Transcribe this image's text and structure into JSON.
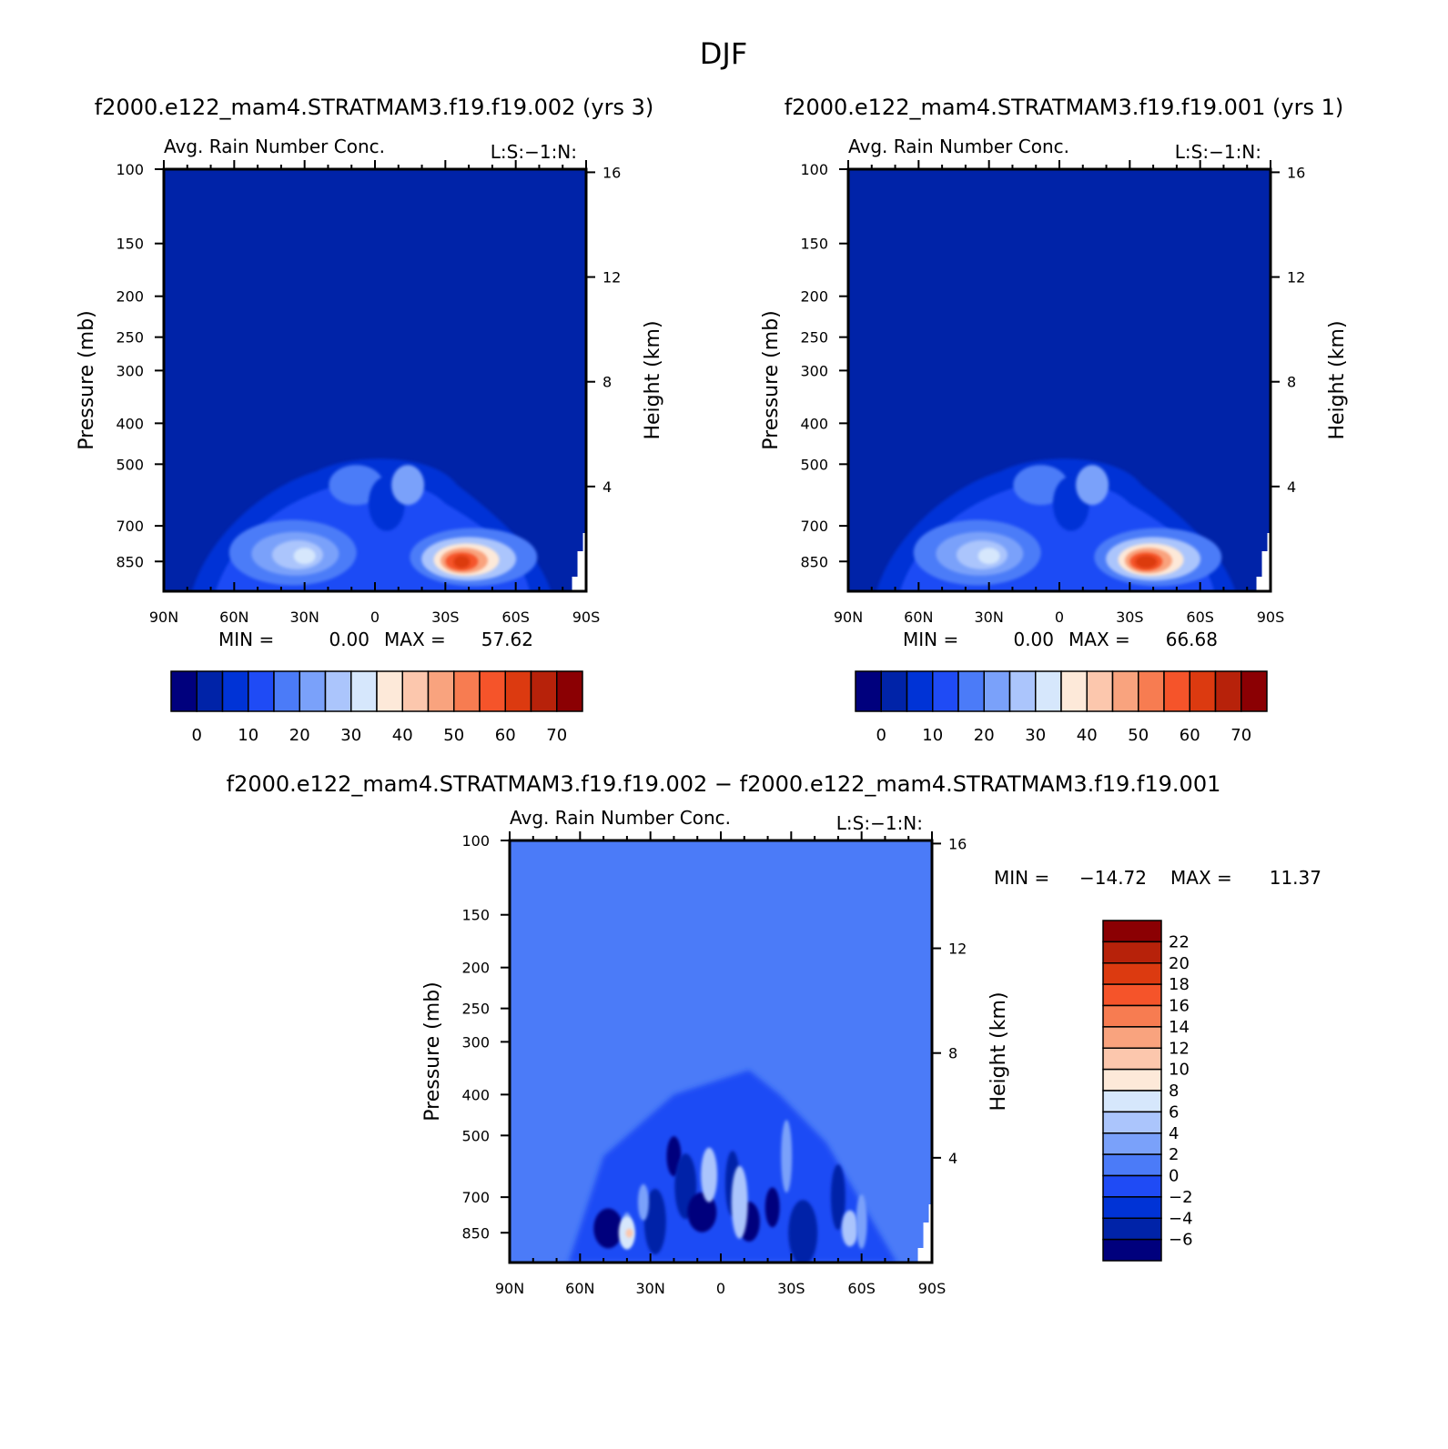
{
  "figure": {
    "title": "DJF",
    "panel1_title": "f2000.e122_mam4.STRATMAM3.f19.f19.002 (yrs 3)",
    "panel2_title": "f2000.e122_mam4.STRATMAM3.f19.f19.001 (yrs 1)",
    "panel3_title": "f2000.e122_mam4.STRATMAM3.f19.f19.002 − f2000.e122_mam4.STRATMAM3.f19.f19.001"
  },
  "chart_data": [
    {
      "type": "heatmap",
      "variable": "Avg. Rain Number Conc.",
      "corner_label": "L:S:−1:N:",
      "ylabel": "Pressure (mb)",
      "y2label": "Height (km)",
      "x_ticks": [
        "90N",
        "60N",
        "30N",
        "0",
        "30S",
        "60S",
        "90S"
      ],
      "x_values": [
        90,
        60,
        30,
        0,
        -30,
        -60,
        -90
      ],
      "y_ticks": [
        100,
        150,
        200,
        250,
        300,
        400,
        500,
        700,
        850
      ],
      "y2_ticks": [
        16,
        12,
        8,
        4
      ],
      "ylim": [
        100,
        1000
      ],
      "min_label": "MIN =",
      "min_value": "0.00",
      "max_label": "MAX =",
      "max_value": "57.62",
      "colorbar": {
        "orientation": "horizontal",
        "levels": [
          0,
          5,
          10,
          15,
          20,
          25,
          30,
          35,
          40,
          45,
          50,
          55,
          60,
          65,
          70
        ],
        "labels": [
          "0",
          "10",
          "20",
          "30",
          "40",
          "50",
          "60",
          "70"
        ],
        "colors": [
          "#00007d",
          "#0023a8",
          "#0033d6",
          "#1f4bf5",
          "#4b7bf8",
          "#7aa1fa",
          "#abc5fc",
          "#d6e7fc",
          "#fde9d9",
          "#fcc7ad",
          "#f9a37e",
          "#f77c51",
          "#f5542a",
          "#dc3a10",
          "#b7220a",
          "#8b0003"
        ]
      },
      "features": [
        {
          "lat": 33,
          "p": 820,
          "value": 32,
          "note": "NH low-level maximum"
        },
        {
          "lat": -37,
          "p": 850,
          "value": 57.62,
          "note": "SH low-level maximum"
        }
      ]
    },
    {
      "type": "heatmap",
      "variable": "Avg. Rain Number Conc.",
      "corner_label": "L:S:−1:N:",
      "ylabel": "Pressure (mb)",
      "y2label": "Height (km)",
      "x_ticks": [
        "90N",
        "60N",
        "30N",
        "0",
        "30S",
        "60S",
        "90S"
      ],
      "x_values": [
        90,
        60,
        30,
        0,
        -30,
        -60,
        -90
      ],
      "y_ticks": [
        100,
        150,
        200,
        250,
        300,
        400,
        500,
        700,
        850
      ],
      "y2_ticks": [
        16,
        12,
        8,
        4
      ],
      "ylim": [
        100,
        1000
      ],
      "min_label": "MIN =",
      "min_value": "0.00",
      "max_label": "MAX =",
      "max_value": "66.68",
      "colorbar": {
        "orientation": "horizontal",
        "levels": [
          0,
          5,
          10,
          15,
          20,
          25,
          30,
          35,
          40,
          45,
          50,
          55,
          60,
          65,
          70
        ],
        "labels": [
          "0",
          "10",
          "20",
          "30",
          "40",
          "50",
          "60",
          "70"
        ],
        "colors": [
          "#00007d",
          "#0023a8",
          "#0033d6",
          "#1f4bf5",
          "#4b7bf8",
          "#7aa1fa",
          "#abc5fc",
          "#d6e7fc",
          "#fde9d9",
          "#fcc7ad",
          "#f9a37e",
          "#f77c51",
          "#f5542a",
          "#dc3a10",
          "#b7220a",
          "#8b0003"
        ]
      },
      "features": [
        {
          "lat": 33,
          "p": 820,
          "value": 34,
          "note": "NH low-level maximum"
        },
        {
          "lat": -37,
          "p": 850,
          "value": 66.68,
          "note": "SH low-level maximum"
        }
      ]
    },
    {
      "type": "heatmap",
      "variable": "Avg. Rain Number Conc.",
      "corner_label": "L:S:−1:N:",
      "ylabel": "Pressure (mb)",
      "y2label": "Height (km)",
      "x_ticks": [
        "90N",
        "60N",
        "30N",
        "0",
        "30S",
        "60S",
        "90S"
      ],
      "x_values": [
        90,
        60,
        30,
        0,
        -30,
        -60,
        -90
      ],
      "y_ticks": [
        100,
        150,
        200,
        250,
        300,
        400,
        500,
        700,
        850
      ],
      "y2_ticks": [
        16,
        12,
        8,
        4
      ],
      "ylim": [
        100,
        1000
      ],
      "min_label": "MIN =",
      "min_value": "−14.72",
      "max_label": "MAX =",
      "max_value": "11.37",
      "colorbar": {
        "orientation": "vertical",
        "levels": [
          -6,
          -4,
          -2,
          0,
          2,
          4,
          6,
          8,
          10,
          12,
          14,
          16,
          18,
          20,
          22
        ],
        "labels": [
          "22",
          "20",
          "18",
          "16",
          "14",
          "12",
          "10",
          "8",
          "6",
          "4",
          "2",
          "0",
          "−2",
          "−4",
          "−6"
        ],
        "colors": [
          "#00007d",
          "#0023a8",
          "#0033d6",
          "#1f4bf5",
          "#4b7bf8",
          "#7aa1fa",
          "#abc5fc",
          "#d6e7fc",
          "#fde9d9",
          "#fcc7ad",
          "#f9a37e",
          "#f77c51",
          "#f5542a",
          "#dc3a10",
          "#b7220a",
          "#8b0003"
        ]
      },
      "features": [
        {
          "lat": 40,
          "p": 850,
          "value": 11.37,
          "note": "positive difference maximum"
        },
        {
          "lat": -37,
          "p": 840,
          "value": -14.72,
          "note": "negative difference minimum"
        }
      ]
    }
  ]
}
